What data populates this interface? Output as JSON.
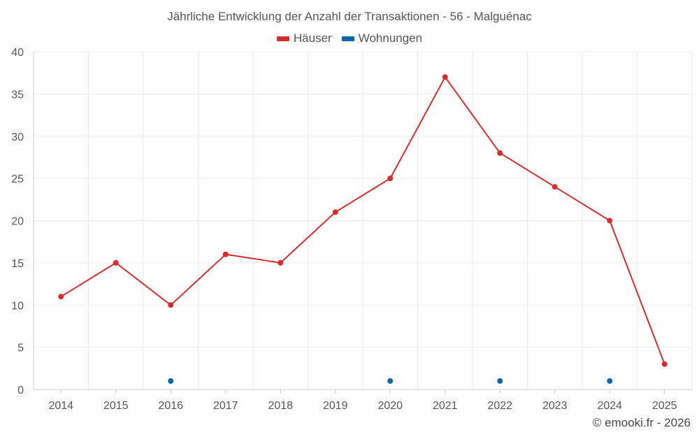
{
  "chart_data": {
    "type": "line",
    "title": "Jährliche Entwicklung der Anzahl der Transaktionen - 56 - Malguénac",
    "categories": [
      "2014",
      "2015",
      "2016",
      "2017",
      "2018",
      "2019",
      "2020",
      "2021",
      "2022",
      "2023",
      "2024",
      "2025"
    ],
    "series": [
      {
        "name": "Häuser",
        "color": "#d32f2f",
        "line": true,
        "values": [
          11,
          15,
          10,
          16,
          15,
          21,
          25,
          37,
          28,
          24,
          20,
          3
        ]
      },
      {
        "name": "Wohnungen",
        "color": "#0a6aa8",
        "line": false,
        "values": [
          null,
          null,
          1,
          null,
          null,
          null,
          1,
          null,
          1,
          null,
          1,
          null
        ]
      }
    ],
    "ylim": [
      0,
      40
    ],
    "yticks": [
      "0",
      "5",
      "10",
      "15",
      "20",
      "25",
      "30",
      "35",
      "40"
    ],
    "grid": true,
    "legend_position": "top-center",
    "xlabel": "",
    "ylabel": ""
  },
  "watermark": "© emooki.fr - 2026"
}
